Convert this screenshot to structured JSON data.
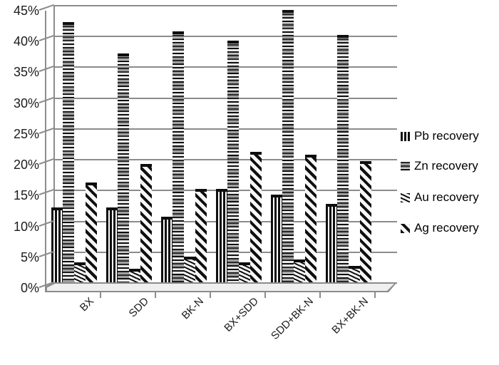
{
  "chart_data": {
    "type": "bar",
    "title": "",
    "xlabel": "",
    "ylabel": "",
    "categories": [
      "BX",
      "SDD",
      "BK-N",
      "BX+SDD",
      "SDD+BK-N",
      "BX+BK-N"
    ],
    "series": [
      {
        "name": "Pb recovery",
        "pattern": "vertical-stripes",
        "values": [
          13,
          13,
          11.5,
          16,
          15,
          13.5
        ]
      },
      {
        "name": "Zn recovery",
        "pattern": "horizontal-stripes",
        "values": [
          43,
          38,
          41.5,
          40,
          45,
          41
        ]
      },
      {
        "name": "Au recovery",
        "pattern": "thin-diagonal-stripes",
        "values": [
          4,
          3,
          5,
          4,
          4.5,
          3.5
        ]
      },
      {
        "name": "Ag recovery",
        "pattern": "wide-diagonal-stripes",
        "values": [
          17,
          20,
          16,
          22,
          21.5,
          20.5
        ]
      }
    ],
    "y_axis": {
      "min": 0,
      "max": 45,
      "step": 5,
      "format": "percent",
      "tick_labels": [
        "0%",
        "5%",
        "10%",
        "15%",
        "20%",
        "25%",
        "30%",
        "35%",
        "40%",
        "45%"
      ]
    },
    "grid": true,
    "legend_position": "right",
    "style": "excel-3d-monochrome-pattern-fills"
  },
  "colors": {
    "bar_ink": "#0f0f0f",
    "bar_paper": "#f6f6f6",
    "gridline": "#8c8c8c",
    "axis_text": "#1c1c1c",
    "legend_text": "#000000",
    "background": "#ffffff",
    "floor_fill": "#efefef"
  }
}
